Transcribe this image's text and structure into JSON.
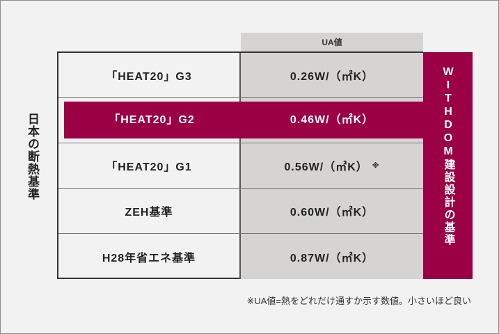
{
  "side_label": "日本の断熱基準",
  "ua_header": "UA値",
  "rows": [
    {
      "standard": "「HEAT20」G3",
      "ua": "0.26W/（㎡K）"
    },
    {
      "standard": "「HEAT20」G2",
      "ua": "0.46W/（㎡K）"
    },
    {
      "standard": "「HEAT20」G1",
      "ua": "0.56W/（㎡K）",
      "mark": "※"
    },
    {
      "standard": "ZEH基準",
      "ua": "0.60W/（㎡K）"
    },
    {
      "standard": "H28年省エネ基準",
      "ua": "0.87W/（㎡K）"
    }
  ],
  "highlight_label": "WITHDOM建設設計の基準",
  "footnote": "※UA値=熱をどれだけ通すか示す数値。小さいほど良い",
  "colors": {
    "accent": "#9b0045",
    "ua_column": "#d6d4d2",
    "background": "#f2f2f2"
  }
}
